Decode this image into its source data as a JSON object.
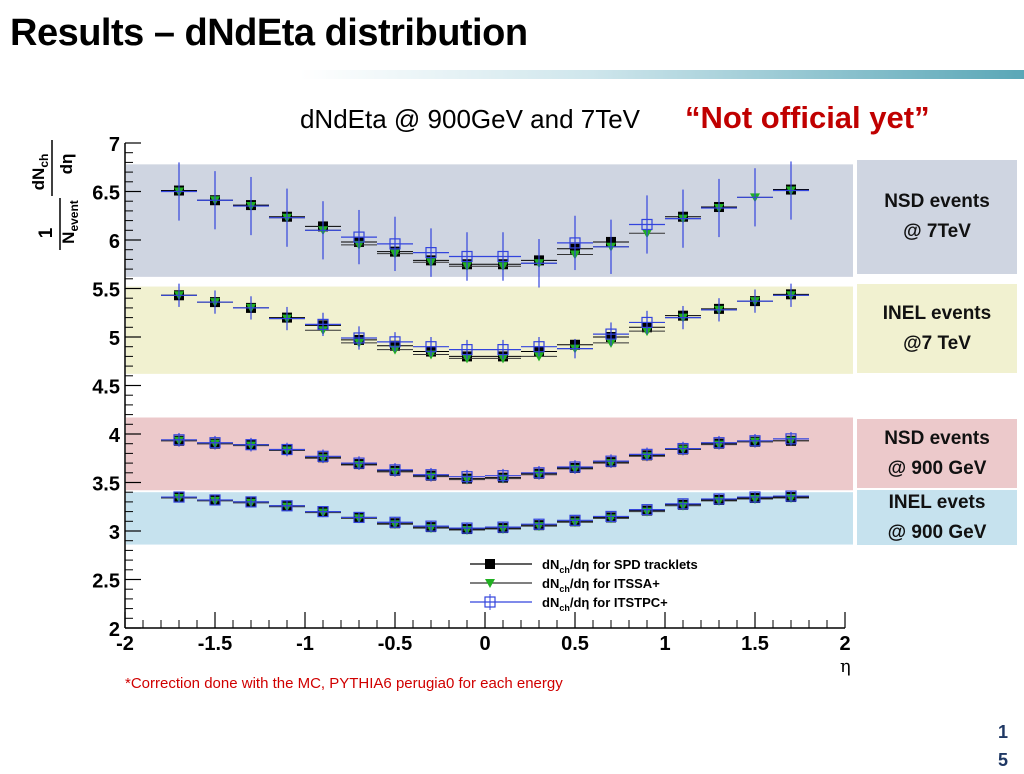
{
  "slide": {
    "title": "Results – dNdEta distribution",
    "stamp": "“Not official yet”",
    "footnote": "*Correction done with the MC, PYTHIA6 perugia0 for each energy",
    "page_number": "15",
    "accent_color": "#5aa7b7"
  },
  "bands": [
    {
      "name": "nsd-7tev",
      "label": "NSD events\n@ 7TeV",
      "ymin": 5.62,
      "ymax": 6.78,
      "color": "#cfd5e1"
    },
    {
      "name": "inel-7tev",
      "label": "INEL events\n@7 TeV",
      "ymin": 4.62,
      "ymax": 5.52,
      "color": "#f1f1d0"
    },
    {
      "name": "nsd-900gev",
      "label": "NSD events\n@ 900 GeV",
      "ymin": 3.42,
      "ymax": 4.17,
      "color": "#ecc9cb"
    },
    {
      "name": "inel-900gev",
      "label": "INEL evets\n@ 900 GeV",
      "ymin": 2.86,
      "ymax": 3.4,
      "color": "#c6e2ee"
    }
  ],
  "chart_data": {
    "type": "scatter",
    "title": "dNdEta @ 900GeV and 7TeV",
    "xlabel": "η",
    "ylabel": "1/N_event dN_ch/dη",
    "xlim": [
      -2,
      2
    ],
    "ylim": [
      2,
      7
    ],
    "x_ticks": [
      "-2",
      "-1.5",
      "-1",
      "-0.5",
      "0",
      "0.5",
      "1",
      "1.5",
      "2"
    ],
    "y_ticks": [
      "2",
      "2.5",
      "3",
      "3.5",
      "4",
      "4.5",
      "5",
      "5.5",
      "6",
      "6.5",
      "7"
    ],
    "legend_position": "bottom-right",
    "legend": [
      {
        "marker": "square",
        "color": "#000000",
        "prefix": "dN",
        "sub": "ch",
        "suffix": "/dη for SPD tracklets"
      },
      {
        "marker": "triangle-down",
        "color": "#22b022",
        "prefix": "dN",
        "sub": "ch",
        "suffix": "/dη for ITSSA+"
      },
      {
        "marker": "open-cross-square",
        "color": "#3344dd",
        "prefix": "dN",
        "sub": "ch",
        "suffix": "/dη for ITSTPC+"
      }
    ],
    "eta": [
      -1.7,
      -1.5,
      -1.3,
      -1.1,
      -0.9,
      -0.7,
      -0.5,
      -0.3,
      -0.1,
      0.1,
      0.3,
      0.5,
      0.7,
      0.9,
      1.1,
      1.3,
      1.5,
      1.7
    ],
    "series": [
      {
        "group": "NSD 7TeV",
        "method": "SPD tracklets",
        "values": [
          6.51,
          6.41,
          6.36,
          6.24,
          6.14,
          5.98,
          5.88,
          5.79,
          5.75,
          5.75,
          5.79,
          5.91,
          5.98,
          null,
          6.24,
          6.34,
          null,
          6.52
        ]
      },
      {
        "group": "NSD 7TeV",
        "method": "ITSSA+",
        "values": [
          6.5,
          6.41,
          6.35,
          6.23,
          6.1,
          5.95,
          5.86,
          5.77,
          5.73,
          5.73,
          5.76,
          5.85,
          5.93,
          6.07,
          6.22,
          6.33,
          6.44,
          6.51
        ]
      },
      {
        "group": "NSD 7TeV",
        "method": "ITSTPC+",
        "values": [
          null,
          null,
          null,
          null,
          null,
          6.03,
          5.96,
          5.87,
          5.83,
          5.83,
          null,
          5.97,
          null,
          6.16,
          null,
          null,
          null,
          null
        ],
        "errors": [
          0.3,
          0.3,
          0.3,
          0.3,
          0.3,
          0.28,
          0.28,
          0.25,
          0.25,
          0.25,
          0.25,
          0.28,
          0.28,
          0.3,
          0.3,
          0.3,
          0.3,
          0.3
        ]
      },
      {
        "group": "INEL 7TeV",
        "method": "SPD tracklets",
        "values": [
          5.43,
          5.36,
          5.3,
          5.2,
          5.12,
          4.97,
          4.91,
          4.85,
          4.8,
          4.8,
          4.85,
          4.92,
          5.0,
          5.1,
          5.22,
          5.29,
          5.37,
          5.44
        ]
      },
      {
        "group": "INEL 7TeV",
        "method": "ITSSA+",
        "values": [
          5.43,
          5.36,
          5.3,
          5.19,
          5.07,
          4.94,
          4.87,
          4.82,
          4.78,
          4.78,
          4.8,
          4.88,
          4.94,
          5.06,
          5.2,
          5.28,
          5.37,
          5.43
        ]
      },
      {
        "group": "INEL 7TeV",
        "method": "ITSTPC+",
        "values": [
          null,
          null,
          null,
          null,
          5.13,
          4.99,
          4.95,
          4.9,
          4.87,
          4.87,
          4.9,
          null,
          5.03,
          5.15,
          null,
          null,
          null,
          null
        ],
        "errors": [
          0.12,
          0.12,
          0.12,
          0.12,
          0.12,
          0.12,
          0.1,
          0.1,
          0.1,
          0.1,
          0.1,
          0.1,
          0.12,
          0.12,
          0.12,
          0.12,
          0.12,
          0.12
        ]
      },
      {
        "group": "NSD 900GeV",
        "method": "SPD tracklets",
        "values": [
          3.93,
          3.9,
          3.89,
          3.84,
          3.76,
          3.69,
          3.62,
          3.57,
          3.54,
          3.55,
          3.59,
          3.65,
          3.71,
          3.78,
          3.84,
          3.9,
          3.92,
          3.93
        ]
      },
      {
        "group": "NSD 900GeV",
        "method": "ITSSA+",
        "values": [
          3.93,
          3.9,
          3.88,
          3.83,
          3.75,
          3.68,
          3.61,
          3.56,
          3.53,
          3.54,
          3.58,
          3.64,
          3.7,
          3.77,
          3.84,
          3.89,
          3.92,
          3.93
        ]
      },
      {
        "group": "NSD 900GeV",
        "method": "ITSTPC+",
        "values": [
          3.94,
          3.91,
          3.89,
          3.84,
          3.77,
          3.7,
          3.63,
          3.58,
          3.56,
          3.57,
          3.6,
          3.66,
          3.72,
          3.79,
          3.85,
          3.91,
          3.93,
          3.95
        ],
        "errors": [
          0.07,
          0.07,
          0.07,
          0.07,
          0.07,
          0.07,
          0.07,
          0.07,
          0.07,
          0.07,
          0.07,
          0.07,
          0.07,
          0.07,
          0.07,
          0.07,
          0.07,
          0.07
        ]
      },
      {
        "group": "INEL 900GeV",
        "method": "SPD tracklets",
        "values": [
          3.35,
          3.32,
          3.3,
          3.26,
          3.2,
          3.14,
          3.08,
          3.04,
          3.02,
          3.03,
          3.06,
          3.1,
          3.14,
          3.21,
          3.27,
          3.32,
          3.34,
          3.35
        ]
      },
      {
        "group": "INEL 900GeV",
        "method": "ITSSA+",
        "values": [
          3.34,
          3.31,
          3.29,
          3.25,
          3.19,
          3.13,
          3.07,
          3.03,
          3.01,
          3.02,
          3.05,
          3.09,
          3.13,
          3.2,
          3.26,
          3.31,
          3.33,
          3.34
        ]
      },
      {
        "group": "INEL 900GeV",
        "method": "ITSTPC+",
        "values": [
          3.35,
          3.32,
          3.3,
          3.26,
          3.2,
          3.14,
          3.09,
          3.05,
          3.03,
          3.04,
          3.07,
          3.11,
          3.15,
          3.22,
          3.28,
          3.33,
          3.35,
          3.36
        ],
        "errors": [
          0.05,
          0.05,
          0.05,
          0.05,
          0.05,
          0.05,
          0.05,
          0.05,
          0.05,
          0.05,
          0.05,
          0.05,
          0.05,
          0.05,
          0.05,
          0.05,
          0.05,
          0.05
        ]
      }
    ],
    "series_colors": {
      "SPD tracklets": "#000000",
      "ITSSA+": "#22b022",
      "ITSTPC+": "#3344dd"
    }
  }
}
